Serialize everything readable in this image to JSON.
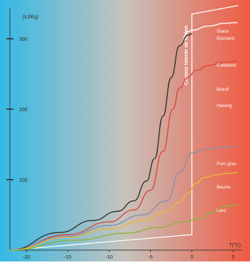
{
  "chart_data": {
    "type": "line",
    "ylabel": "(kJ/Kg)",
    "xlabel": "T(°C)",
    "xlim": [
      -22,
      6
    ],
    "ylim": [
      0,
      355
    ],
    "x_ticks": [
      -20,
      -15,
      -10,
      -5,
      0,
      5
    ],
    "x_tick_labels": [
      "-20",
      "-15",
      "-10",
      "-5",
      "0",
      "5"
    ],
    "y_ticks": [
      100,
      200,
      300
    ],
    "y_tick_labels": [
      "100",
      "200",
      "300"
    ],
    "grid": false,
    "background": {
      "cold_color": "#33b9e6",
      "mid_color": "#c7c3bd",
      "warm_color": "#f05a42"
    },
    "latent_heat_label": "Chaleur latente de fusion",
    "latent_heat_band": {
      "top": [
        0,
        335
      ],
      "bottom": [
        0,
        22
      ],
      "start": [
        -22,
        0
      ]
    },
    "series": [
      {
        "name": "Glace Eponard",
        "color": "#ffffff",
        "x": [
          -22,
          -16,
          -12,
          -9,
          -7,
          -5.5,
          -4.5,
          -3.5,
          -2.5,
          -1.5,
          -0.5,
          0,
          2,
          4,
          5.5
        ],
        "y": [
          0,
          25,
          42,
          55,
          70,
          98,
          130,
          190,
          245,
          290,
          310,
          312,
          318,
          322,
          323
        ]
      },
      {
        "name": "Cabillaud",
        "color": "#2a2a2a",
        "x": [
          -22,
          -16,
          -12,
          -9,
          -7,
          -5.5,
          -4.5,
          -3.5,
          -2.5,
          -1.5,
          -0.5,
          0
        ],
        "y": [
          0,
          25,
          42,
          55,
          70,
          98,
          130,
          190,
          245,
          290,
          305,
          307
        ]
      },
      {
        "name": "Boeuf",
        "color": "#d94a3a",
        "x": [
          -22,
          -15,
          -10,
          -7,
          -5,
          -3.5,
          -2.3,
          -1.5,
          -0.5,
          0.5,
          2,
          3.5,
          5.5
        ],
        "y": [
          0,
          22,
          40,
          57,
          85,
          140,
          200,
          230,
          245,
          255,
          262,
          266,
          268
        ]
      },
      {
        "name": "Hareng",
        "color": "#ffffff",
        "x": [],
        "y": []
      },
      {
        "name": "Porc gras",
        "color": "#8a8fa8",
        "x": [
          -22,
          -15,
          -10,
          -6,
          -3,
          -1.5,
          0,
          2,
          4,
          5.5
        ],
        "y": [
          0,
          20,
          35,
          50,
          70,
          110,
          138,
          144,
          146,
          147
        ]
      },
      {
        "name": "Beurre",
        "color": "#e8b835",
        "x": [
          -22,
          -15,
          -10,
          -6,
          -3,
          -1.5,
          -0.5,
          0.5,
          1.5,
          3,
          4.5,
          5.5
        ],
        "y": [
          0,
          18,
          30,
          42,
          55,
          68,
          80,
          95,
          103,
          107,
          109,
          110
        ]
      },
      {
        "name": "Lard",
        "color": "#8fb53a",
        "x": [
          -22,
          -14,
          -8,
          -4,
          -1,
          1,
          2.5,
          4,
          5.5
        ],
        "y": [
          0,
          14,
          24,
          32,
          40,
          45,
          53,
          62,
          64
        ]
      }
    ]
  }
}
